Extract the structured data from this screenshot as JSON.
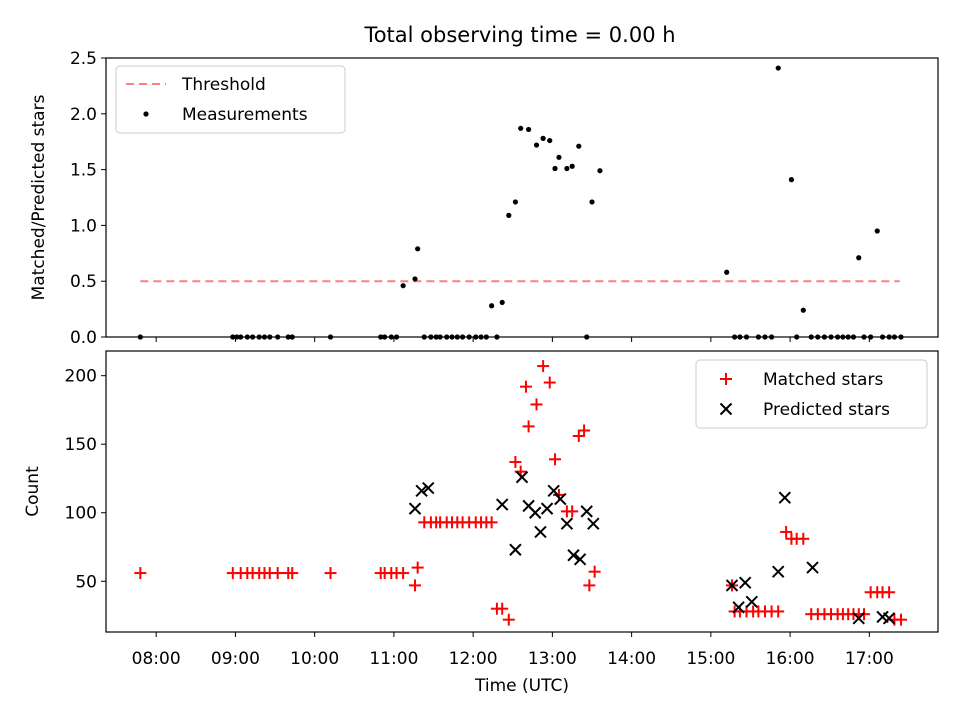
{
  "figure_title": "Total observing time = 0.00 h",
  "colors": {
    "threshold": "#ff7f7f",
    "measurement": "#000000",
    "matched": "#ff0000",
    "predicted": "#000000"
  },
  "chart_data": [
    {
      "type": "scatter",
      "ylabel": "Matched/Predicted stars",
      "xlabel": "",
      "xlim": [
        "07:22",
        "17:52"
      ],
      "ylim": [
        0,
        2.5
      ],
      "yticks": [
        0.0,
        0.5,
        1.0,
        1.5,
        2.0,
        2.5
      ],
      "ytick_labels": [
        "0.0",
        "0.5",
        "1.0",
        "1.5",
        "2.0",
        "2.5"
      ],
      "legend_position": "upper-left",
      "series": [
        {
          "name": "Threshold",
          "style": "dashed-line",
          "x": [
            "07:48",
            "17:23"
          ],
          "y": [
            0.5,
            0.5
          ]
        },
        {
          "name": "Measurements",
          "style": "point",
          "x": [
            "07:48",
            "08:58",
            "09:01",
            "09:04",
            "09:09",
            "09:13",
            "09:18",
            "09:22",
            "09:26",
            "09:32",
            "09:40",
            "09:43",
            "10:12",
            "10:50",
            "10:53",
            "10:58",
            "11:02",
            "11:07",
            "11:16",
            "11:18",
            "11:23",
            "11:28",
            "11:32",
            "11:35",
            "11:40",
            "11:44",
            "11:48",
            "11:52",
            "11:57",
            "12:02",
            "12:06",
            "12:10",
            "12:14",
            "12:18",
            "12:22",
            "12:27",
            "12:32",
            "12:36",
            "12:42",
            "12:48",
            "12:53",
            "12:58",
            "13:02",
            "13:05",
            "13:11",
            "13:15",
            "13:20",
            "13:26",
            "13:30",
            "13:36",
            "15:12",
            "15:18",
            "15:22",
            "15:27",
            "15:36",
            "15:41",
            "15:46",
            "15:51",
            "16:01",
            "16:05",
            "16:10",
            "16:16",
            "16:21",
            "16:26",
            "16:31",
            "16:36",
            "16:40",
            "16:44",
            "16:48",
            "16:52",
            "16:56",
            "17:01",
            "17:06",
            "17:10",
            "17:15",
            "17:19",
            "17:24"
          ],
          "y": [
            0,
            0,
            0,
            0,
            0,
            0,
            0,
            0,
            0,
            0,
            0,
            0,
            0,
            0,
            0,
            0,
            0,
            0.46,
            0.52,
            0.79,
            0,
            0,
            0,
            0,
            0,
            0,
            0,
            0,
            0,
            0,
            0,
            0,
            0.28,
            0,
            0.31,
            1.09,
            1.21,
            1.87,
            1.86,
            1.72,
            1.78,
            1.76,
            1.51,
            1.61,
            1.51,
            1.53,
            1.71,
            0,
            1.21,
            1.49,
            0.58,
            0,
            0,
            0,
            0,
            0,
            0,
            2.41,
            1.41,
            0,
            0.24,
            0,
            0,
            0,
            0,
            0,
            0,
            0,
            0,
            0.71,
            0,
            0,
            0.95,
            0,
            0,
            0,
            0
          ]
        }
      ]
    },
    {
      "type": "scatter",
      "ylabel": "Count",
      "xlabel": "Time (UTC)",
      "xlim": [
        "07:22",
        "17:52"
      ],
      "ylim": [
        13,
        218
      ],
      "xticks": [
        "08:00",
        "09:00",
        "10:00",
        "11:00",
        "12:00",
        "13:00",
        "14:00",
        "15:00",
        "16:00",
        "17:00"
      ],
      "yticks": [
        50,
        100,
        150,
        200
      ],
      "ytick_labels": [
        "50",
        "100",
        "150",
        "200"
      ],
      "legend_position": "upper-right",
      "series": [
        {
          "name": "Matched stars",
          "style": "plus",
          "x": [
            "07:48",
            "08:58",
            "09:04",
            "09:09",
            "09:13",
            "09:18",
            "09:22",
            "09:26",
            "09:32",
            "09:40",
            "09:43",
            "10:12",
            "10:50",
            "10:53",
            "10:58",
            "11:02",
            "11:07",
            "11:16",
            "11:18",
            "11:23",
            "11:28",
            "11:32",
            "11:35",
            "11:40",
            "11:44",
            "11:48",
            "11:52",
            "11:57",
            "12:02",
            "12:06",
            "12:10",
            "12:14",
            "12:18",
            "12:22",
            "12:27",
            "12:32",
            "12:36",
            "12:40",
            "12:42",
            "12:48",
            "12:53",
            "12:58",
            "13:02",
            "13:05",
            "13:11",
            "13:15",
            "13:20",
            "13:24",
            "13:28",
            "13:32",
            "15:16",
            "15:18",
            "15:22",
            "15:27",
            "15:32",
            "15:36",
            "15:41",
            "15:46",
            "15:51",
            "15:57",
            "16:01",
            "16:05",
            "16:10",
            "16:16",
            "16:21",
            "16:26",
            "16:31",
            "16:36",
            "16:40",
            "16:44",
            "16:48",
            "16:52",
            "16:56",
            "17:01",
            "17:06",
            "17:10",
            "17:15",
            "17:19",
            "17:24"
          ],
          "y": [
            56,
            56,
            56,
            56,
            56,
            56,
            56,
            56,
            56,
            56,
            56,
            56,
            56,
            56,
            56,
            56,
            56,
            47,
            60,
            93,
            93,
            93,
            93,
            93,
            93,
            93,
            93,
            93,
            93,
            93,
            93,
            93,
            30,
            30,
            22,
            137,
            130,
            192,
            163,
            179,
            207,
            195,
            139,
            113,
            101,
            101,
            156,
            160,
            47,
            57,
            47,
            28,
            28,
            28,
            28,
            28,
            28,
            28,
            28,
            86,
            81,
            81,
            81,
            26,
            26,
            26,
            26,
            26,
            26,
            26,
            26,
            26,
            26,
            42,
            42,
            42,
            42,
            22,
            22
          ]
        },
        {
          "name": "Predicted stars",
          "style": "x",
          "x": [
            "11:16",
            "11:21",
            "11:26",
            "12:22",
            "12:32",
            "12:37",
            "12:42",
            "12:47",
            "12:51",
            "12:56",
            "13:01",
            "13:06",
            "13:11",
            "13:16",
            "13:21",
            "13:26",
            "13:31",
            "15:16",
            "15:21",
            "15:26",
            "15:31",
            "15:51",
            "15:56",
            "16:17",
            "16:52",
            "17:10",
            "17:15"
          ],
          "y": [
            103,
            116,
            118,
            106,
            73,
            126,
            105,
            100,
            86,
            103,
            116,
            110,
            92,
            69,
            66,
            101,
            92,
            47,
            31,
            49,
            35,
            57,
            111,
            60,
            23,
            24,
            23
          ]
        }
      ]
    }
  ]
}
